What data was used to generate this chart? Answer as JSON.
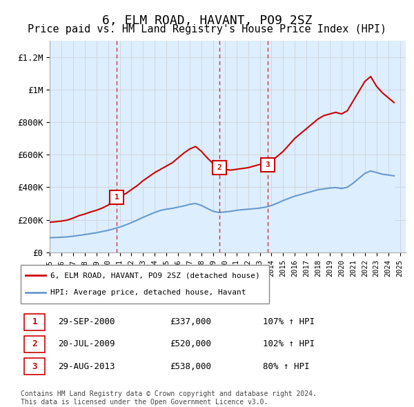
{
  "title": "6, ELM ROAD, HAVANT, PO9 2SZ",
  "subtitle": "Price paid vs. HM Land Registry's House Price Index (HPI)",
  "title_fontsize": 13,
  "subtitle_fontsize": 11,
  "ylabel_ticks": [
    "£0",
    "£200K",
    "£400K",
    "£600K",
    "£800K",
    "£1M",
    "£1.2M"
  ],
  "ytick_values": [
    0,
    200000,
    400000,
    600000,
    800000,
    1000000,
    1200000
  ],
  "ylim": [
    0,
    1300000
  ],
  "xlim_start": 1995.0,
  "xlim_end": 2025.5,
  "xtick_years": [
    1995,
    1996,
    1997,
    1998,
    1999,
    2000,
    2001,
    2002,
    2003,
    2004,
    2005,
    2006,
    2007,
    2008,
    2009,
    2010,
    2011,
    2012,
    2013,
    2014,
    2015,
    2016,
    2017,
    2018,
    2019,
    2020,
    2021,
    2022,
    2023,
    2024,
    2025
  ],
  "red_line_color": "#cc0000",
  "blue_line_color": "#6699cc",
  "blue_fill_color": "#ddeeff",
  "sale_marker_color": "#cc0000",
  "sale_line_color": "#cc0000",
  "sales": [
    {
      "label": "1",
      "date": "29-SEP-2000",
      "x": 2000.75,
      "price": 337000,
      "pct": "107%",
      "direction": "↑"
    },
    {
      "label": "2",
      "date": "20-JUL-2009",
      "x": 2009.55,
      "price": 520000,
      "pct": "102%",
      "direction": "↑"
    },
    {
      "label": "3",
      "date": "29-AUG-2013",
      "x": 2013.66,
      "price": 538000,
      "pct": "80%",
      "direction": "↑"
    }
  ],
  "legend_line1": "6, ELM ROAD, HAVANT, PO9 2SZ (detached house)",
  "legend_line2": "HPI: Average price, detached house, Havant",
  "footnote": "Contains HM Land Registry data © Crown copyright and database right 2024.\nThis data is licensed under the Open Government Licence v3.0.",
  "red_x": [
    1995.0,
    1995.5,
    1996.0,
    1996.5,
    1997.0,
    1997.5,
    1998.0,
    1998.5,
    1999.0,
    1999.5,
    2000.0,
    2000.75,
    2001.0,
    2001.5,
    2002.0,
    2002.5,
    2003.0,
    2003.5,
    2004.0,
    2004.5,
    2005.0,
    2005.5,
    2006.0,
    2006.5,
    2007.0,
    2007.5,
    2008.0,
    2008.5,
    2009.0,
    2009.55,
    2010.0,
    2010.5,
    2011.0,
    2011.5,
    2012.0,
    2012.5,
    2013.0,
    2013.66,
    2014.0,
    2014.5,
    2015.0,
    2015.5,
    2016.0,
    2016.5,
    2017.0,
    2017.5,
    2018.0,
    2018.5,
    2019.0,
    2019.5,
    2020.0,
    2020.5,
    2021.0,
    2021.5,
    2022.0,
    2022.5,
    2023.0,
    2023.5,
    2024.0,
    2024.5
  ],
  "red_y": [
    185000,
    188000,
    192000,
    198000,
    210000,
    225000,
    235000,
    248000,
    258000,
    272000,
    290000,
    337000,
    345000,
    360000,
    385000,
    410000,
    440000,
    465000,
    490000,
    510000,
    530000,
    550000,
    580000,
    610000,
    635000,
    650000,
    620000,
    580000,
    545000,
    520000,
    510000,
    505000,
    510000,
    515000,
    520000,
    530000,
    540000,
    538000,
    560000,
    590000,
    620000,
    660000,
    700000,
    730000,
    760000,
    790000,
    820000,
    840000,
    850000,
    860000,
    850000,
    870000,
    930000,
    990000,
    1050000,
    1080000,
    1020000,
    980000,
    950000,
    920000
  ],
  "blue_x": [
    1995.0,
    1995.5,
    1996.0,
    1996.5,
    1997.0,
    1997.5,
    1998.0,
    1998.5,
    1999.0,
    1999.5,
    2000.0,
    2000.5,
    2001.0,
    2001.5,
    2002.0,
    2002.5,
    2003.0,
    2003.5,
    2004.0,
    2004.5,
    2005.0,
    2005.5,
    2006.0,
    2006.5,
    2007.0,
    2007.5,
    2008.0,
    2008.5,
    2009.0,
    2009.5,
    2010.0,
    2010.5,
    2011.0,
    2011.5,
    2012.0,
    2012.5,
    2013.0,
    2013.5,
    2014.0,
    2014.5,
    2015.0,
    2015.5,
    2016.0,
    2016.5,
    2017.0,
    2017.5,
    2018.0,
    2018.5,
    2019.0,
    2019.5,
    2020.0,
    2020.5,
    2021.0,
    2021.5,
    2022.0,
    2022.5,
    2023.0,
    2023.5,
    2024.0,
    2024.5
  ],
  "blue_y": [
    90000,
    91000,
    93000,
    95000,
    99000,
    104000,
    109000,
    115000,
    120000,
    128000,
    135000,
    145000,
    155000,
    168000,
    182000,
    198000,
    215000,
    230000,
    245000,
    258000,
    265000,
    270000,
    278000,
    285000,
    295000,
    300000,
    288000,
    270000,
    252000,
    245000,
    248000,
    252000,
    258000,
    262000,
    265000,
    268000,
    272000,
    278000,
    288000,
    302000,
    318000,
    332000,
    345000,
    355000,
    365000,
    375000,
    385000,
    390000,
    395000,
    398000,
    392000,
    400000,
    425000,
    455000,
    485000,
    500000,
    490000,
    480000,
    475000,
    470000
  ]
}
